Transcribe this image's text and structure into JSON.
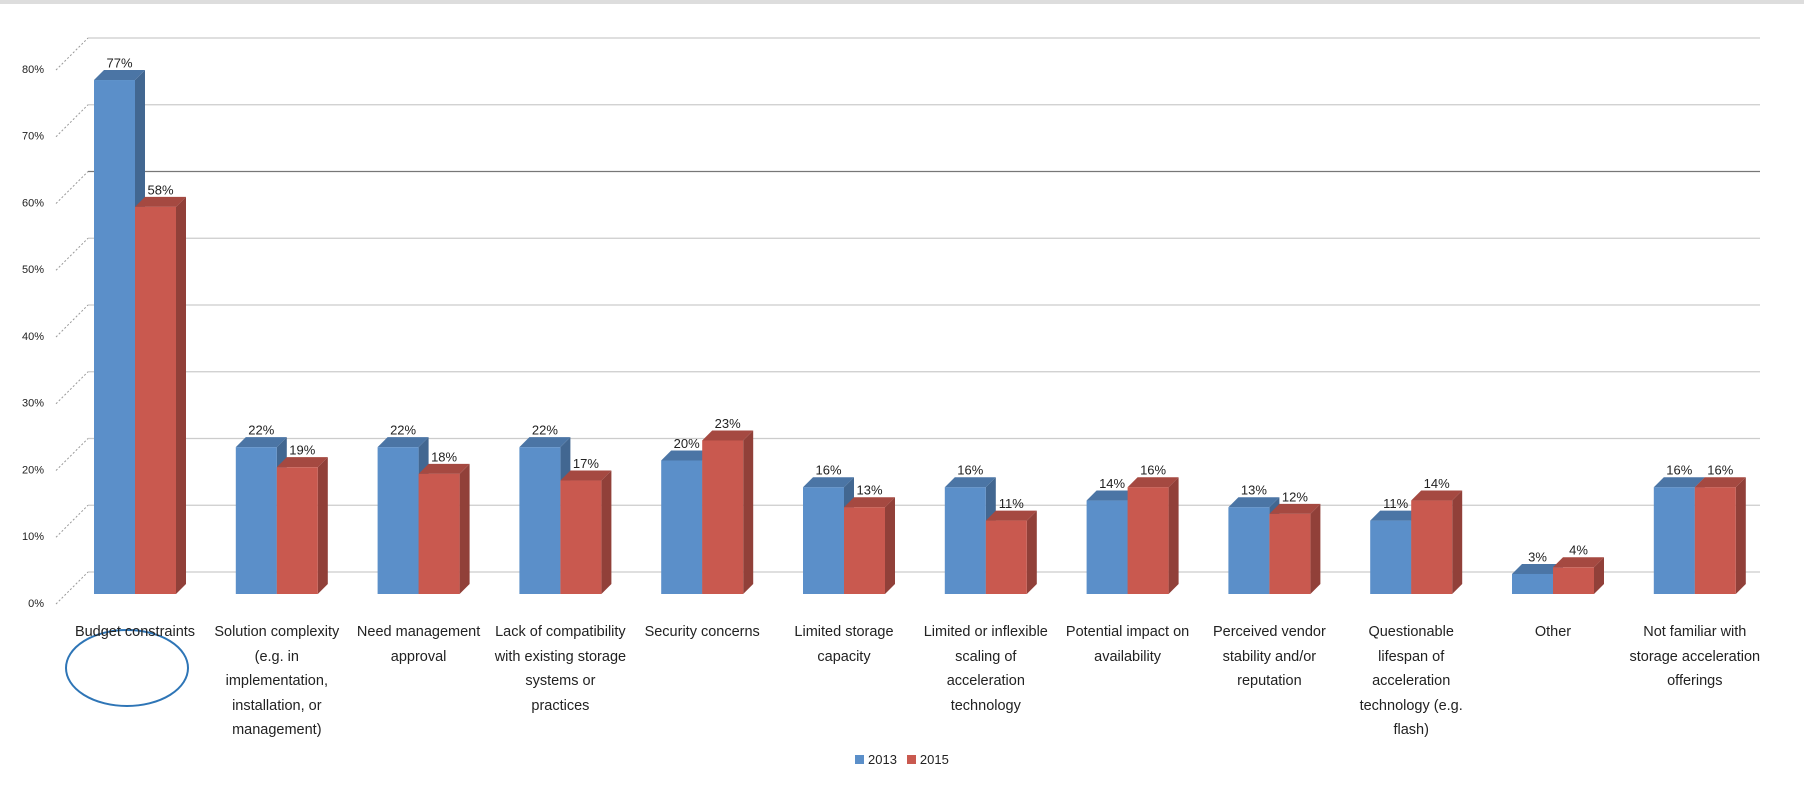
{
  "chart_data": {
    "type": "bar",
    "categories": [
      "Budget constraints",
      "Solution complexity (e.g. in implementation, installation, or management)",
      "Need management approval",
      "Lack of compatibility with existing storage systems or practices",
      "Security concerns",
      "Limited storage capacity",
      "Limited or inflexible scaling of acceleration technology",
      "Potential impact on availability",
      "Perceived vendor stability and/or reputation",
      "Questionable lifespan of acceleration technology (e.g. flash)",
      "Other",
      "Not familiar with storage acceleration offerings"
    ],
    "series": [
      {
        "name": "2013",
        "color": "#5b8fc9",
        "values": [
          77,
          22,
          22,
          22,
          20,
          16,
          16,
          14,
          13,
          11,
          3,
          16
        ],
        "value_labels": [
          "77%",
          "22%",
          "22%",
          "22%",
          "20%",
          "16%",
          "16%",
          "14%",
          "13%",
          "11%",
          "3%",
          "16%"
        ]
      },
      {
        "name": "2015",
        "color": "#c9594f",
        "values": [
          58,
          19,
          18,
          17,
          23,
          13,
          11,
          16,
          12,
          14,
          4,
          16
        ],
        "value_labels": [
          "58%",
          "19%",
          "18%",
          "17%",
          "23%",
          "13%",
          "11%",
          "16%",
          "12%",
          "14%",
          "4%",
          "16%"
        ]
      }
    ],
    "ylim": [
      0,
      80
    ],
    "yticks": [
      {
        "value": 0,
        "label": "0%"
      },
      {
        "value": 10,
        "label": "10%"
      },
      {
        "value": 20,
        "label": "20%"
      },
      {
        "value": 30,
        "label": "30%"
      },
      {
        "value": 40,
        "label": "40%"
      },
      {
        "value": 50,
        "label": "50%"
      },
      {
        "value": 60,
        "label": "60%"
      },
      {
        "value": 70,
        "label": "70%"
      },
      {
        "value": 80,
        "label": "80%"
      }
    ],
    "grid": true,
    "legend": "bottom"
  }
}
